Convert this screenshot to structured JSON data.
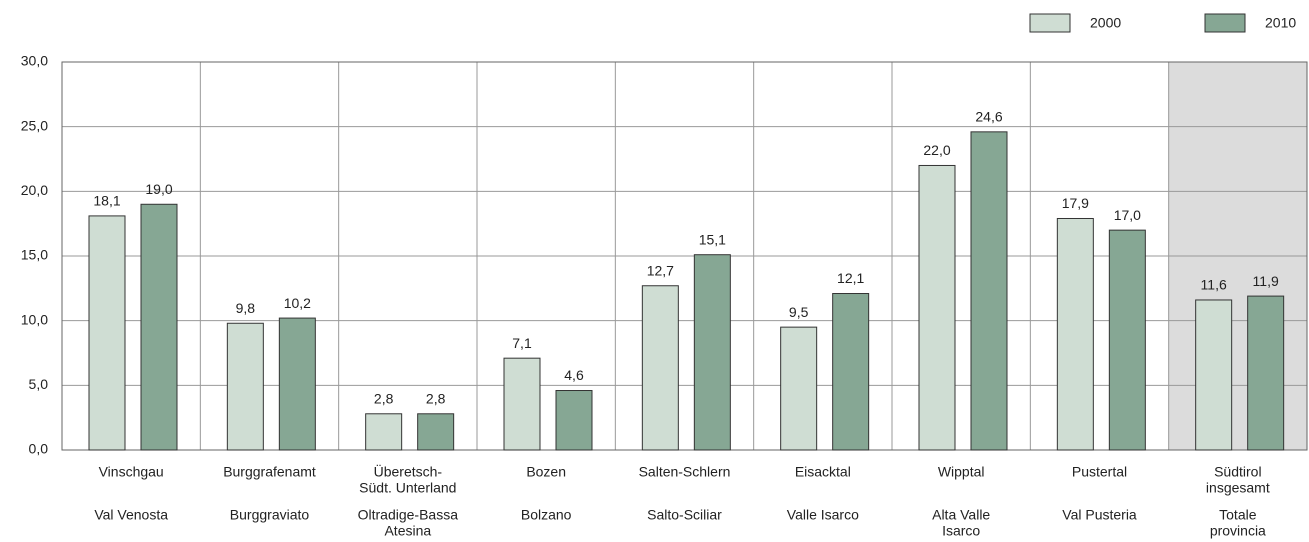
{
  "chart_data": {
    "type": "bar",
    "categories": [
      [
        [
          "Vinschgau"
        ],
        [
          "Val Venosta"
        ]
      ],
      [
        [
          "Burggrafenamt"
        ],
        [
          "Burggraviato"
        ]
      ],
      [
        [
          "Überetsch-",
          "Südt. Unterland"
        ],
        [
          "Oltradige-Bassa",
          "Atesina"
        ]
      ],
      [
        [
          "Bozen"
        ],
        [
          "Bolzano"
        ]
      ],
      [
        [
          "Salten-Schlern"
        ],
        [
          "Salto-Sciliar"
        ]
      ],
      [
        [
          "Eisacktal"
        ],
        [
          "Valle Isarco"
        ]
      ],
      [
        [
          "Wipptal"
        ],
        [
          "Alta Valle",
          "Isarco"
        ]
      ],
      [
        [
          "Pustertal"
        ],
        [
          "Val Pusteria"
        ]
      ],
      [
        [
          "Südtirol",
          "insgesamt"
        ],
        [
          "Totale",
          "provincia"
        ]
      ]
    ],
    "series": [
      {
        "name": "2000",
        "color": "#cfddd3",
        "values": [
          18.1,
          9.8,
          2.8,
          7.1,
          12.7,
          9.5,
          22.0,
          17.9,
          11.6
        ],
        "value_labels": [
          "18,1",
          "9,8",
          "2,8",
          "7,1",
          "12,7",
          "9,5",
          "22,0",
          "17,9",
          "11,6"
        ]
      },
      {
        "name": "2010",
        "color": "#86a794",
        "values": [
          19.0,
          10.2,
          2.8,
          4.6,
          15.1,
          12.1,
          24.6,
          17.0,
          11.9
        ],
        "value_labels": [
          "19,0",
          "10,2",
          "2,8",
          "4,6",
          "15,1",
          "12,1",
          "24,6",
          "17,0",
          "11,9"
        ]
      }
    ],
    "ylim": [
      0,
      30
    ],
    "yticks": [
      {
        "value": 0,
        "label": "0,0"
      },
      {
        "value": 5,
        "label": "5,0"
      },
      {
        "value": 10,
        "label": "10,0"
      },
      {
        "value": 15,
        "label": "15,0"
      },
      {
        "value": 20,
        "label": "20,0"
      },
      {
        "value": 25,
        "label": "25,0"
      },
      {
        "value": 30,
        "label": "30,0"
      }
    ],
    "grid": true,
    "legend": "top-right",
    "highlight_category": 8
  }
}
